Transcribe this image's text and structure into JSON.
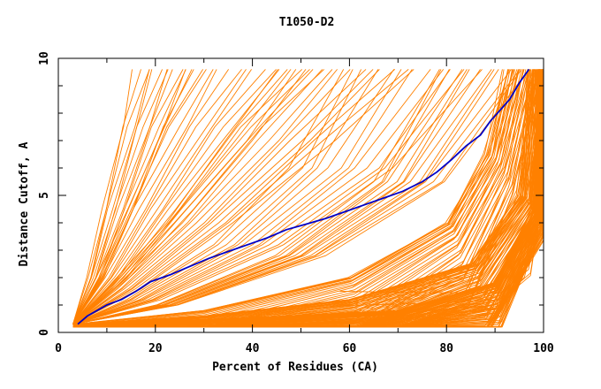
{
  "chart_data": {
    "type": "line",
    "title": "T1050-D2",
    "xlabel": "Percent of Residues (CA)",
    "ylabel": "Distance Cutoff, A",
    "xlim": [
      0,
      100
    ],
    "ylim": [
      0,
      10
    ],
    "x_ticks": [
      0,
      20,
      40,
      60,
      80,
      100
    ],
    "y_ticks": [
      0,
      5,
      10
    ],
    "grid": false,
    "colors": {
      "models": "#ff8000",
      "highlight": "#0000c8",
      "axes": "#000000"
    },
    "highlight_series": {
      "x": [
        4,
        6,
        8,
        10,
        13,
        16,
        19,
        23,
        27,
        31,
        35,
        39,
        43,
        47,
        51,
        55,
        59,
        63,
        67,
        71,
        75,
        78,
        81,
        84,
        87,
        89,
        91,
        93,
        95,
        97
      ],
      "y": [
        0.3,
        0.6,
        0.8,
        1.0,
        1.2,
        1.5,
        1.85,
        2.1,
        2.4,
        2.7,
        2.95,
        3.2,
        3.45,
        3.75,
        3.95,
        4.15,
        4.4,
        4.65,
        4.9,
        5.15,
        5.5,
        5.85,
        6.3,
        6.8,
        7.2,
        7.7,
        8.1,
        8.5,
        9.1,
        9.6
      ]
    },
    "model_families": [
      {
        "count": 14,
        "points": [
          [
            3,
            0.3
          ],
          [
            6,
            2.0
          ],
          [
            9,
            4.5
          ],
          [
            13,
            7.5
          ],
          [
            16,
            9.6
          ]
        ],
        "dx": 1.0,
        "dy": 0.0
      },
      {
        "count": 16,
        "points": [
          [
            3,
            0.3
          ],
          [
            8,
            2.0
          ],
          [
            14,
            4.5
          ],
          [
            22,
            7.5
          ],
          [
            28,
            9.6
          ]
        ],
        "dx": 1.8,
        "dy": 0.0
      },
      {
        "count": 14,
        "points": [
          [
            3,
            0.3
          ],
          [
            10,
            1.6
          ],
          [
            22,
            4.0
          ],
          [
            35,
            7.0
          ],
          [
            45,
            9.6
          ]
        ],
        "dx": 2.2,
        "dy": 0.0
      },
      {
        "count": 12,
        "points": [
          [
            3,
            0.3
          ],
          [
            14,
            1.2
          ],
          [
            32,
            3.2
          ],
          [
            48,
            6.0
          ],
          [
            58,
            9.6
          ]
        ],
        "dx": 2.6,
        "dy": 0.0
      },
      {
        "count": 14,
        "points": [
          [
            3,
            0.3
          ],
          [
            20,
            1.0
          ],
          [
            45,
            2.8
          ],
          [
            65,
            5.5
          ],
          [
            78,
            9.6
          ]
        ],
        "dx": 1.5,
        "dy": 0.0
      },
      {
        "count": 40,
        "points": [
          [
            3,
            0.3
          ],
          [
            30,
            0.8
          ],
          [
            60,
            2.0
          ],
          [
            80,
            4.0
          ],
          [
            88,
            6.5
          ],
          [
            92,
            9.6
          ]
        ],
        "dx": 0.2,
        "dy": -0.02
      },
      {
        "count": 70,
        "points": [
          [
            3,
            0.3
          ],
          [
            30,
            0.6
          ],
          [
            60,
            1.2
          ],
          [
            85,
            2.5
          ],
          [
            95,
            5.0
          ],
          [
            97,
            9.6
          ]
        ],
        "dx": 0.1,
        "dy": -0.012
      },
      {
        "count": 60,
        "points": [
          [
            3,
            0.3
          ],
          [
            35,
            0.5
          ],
          [
            70,
            0.8
          ],
          [
            90,
            1.8
          ],
          [
            98,
            4.5
          ],
          [
            99,
            9.6
          ]
        ],
        "dx": 0.03,
        "dy": -0.008
      },
      {
        "count": 5,
        "points": [
          [
            58,
            0.3
          ],
          [
            75,
            0.55
          ],
          [
            90,
            0.85
          ],
          [
            96,
            2.0
          ],
          [
            99,
            5.0
          ]
        ],
        "dx": 0.5,
        "dy": 0.03
      }
    ]
  }
}
